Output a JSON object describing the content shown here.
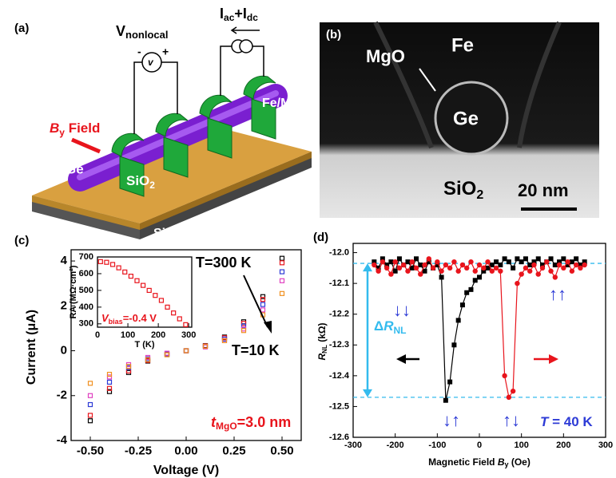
{
  "panels": {
    "a": {
      "label": "(a)",
      "v_nonlocal": [
        "V",
        "nonlocal"
      ],
      "meter": [
        "-",
        "v",
        "+"
      ],
      "current": [
        "I",
        "ac",
        "+I",
        "dc"
      ],
      "field": [
        "B",
        "y",
        " Field"
      ],
      "ge": "Ge",
      "fe_mgo": "Fe/MgO",
      "sio2": [
        "SiO",
        "2"
      ],
      "si": "Si"
    },
    "b": {
      "label": "(b)",
      "fe": "Fe",
      "mgo": "MgO",
      "ge": "Ge",
      "sio2": [
        "SiO",
        "2"
      ],
      "scale_bar": "20 nm"
    }
  },
  "chart_data": [
    {
      "type": "scatter",
      "label": "(c)",
      "x_label": "Voltage (V)",
      "y_label": "Current (μA)",
      "x": [
        -0.5,
        -0.4,
        -0.3,
        -0.2,
        -0.1,
        0,
        0.1,
        0.2,
        0.3,
        0.4,
        0.5
      ],
      "series": [
        {
          "color": "#000000",
          "values": [
            -3.12,
            -1.82,
            -0.97,
            -0.46,
            -0.17,
            0,
            0.23,
            0.61,
            1.29,
            2.41,
            4.12
          ]
        },
        {
          "color": "#e8141c",
          "values": [
            -2.88,
            -1.68,
            -0.9,
            -0.43,
            -0.16,
            0,
            0.22,
            0.58,
            1.22,
            2.29,
            3.92
          ]
        },
        {
          "color": "#2d3bd6",
          "values": [
            -2.4,
            -1.4,
            -0.75,
            -0.36,
            -0.13,
            0,
            0.2,
            0.52,
            1.1,
            2.06,
            3.52
          ]
        },
        {
          "color": "#e040c0",
          "values": [
            -2.0,
            -1.17,
            -0.62,
            -0.3,
            -0.11,
            0,
            0.17,
            0.46,
            0.97,
            1.82,
            3.12
          ]
        },
        {
          "color": "#f09020",
          "values": [
            -1.45,
            -1.05,
            -0.7,
            -0.4,
            -0.18,
            0,
            0.2,
            0.45,
            0.9,
            1.6,
            2.55
          ]
        }
      ],
      "xlim": [
        -0.6,
        0.6
      ],
      "ylim": [
        -4,
        4.5
      ],
      "xticks": [
        {
          "value": -0.5,
          "label": "-0.50"
        },
        {
          "value": -0.25,
          "label": "-0.25"
        },
        {
          "value": 0,
          "label": "0.00"
        },
        {
          "value": 0.25,
          "label": "0.25"
        },
        {
          "value": 0.5,
          "label": "0.50"
        }
      ],
      "yticks": [
        -4,
        -2,
        0,
        2,
        4
      ],
      "annotations": {
        "t_high": "T=300 K",
        "t_low": "T=10 K",
        "thickness": [
          "t",
          "MgO",
          "=3.0 nm"
        ]
      }
    },
    {
      "type": "scatter",
      "x_label": "T (K)",
      "y_label": "RA (MΩ·cm²)",
      "x": [
        10,
        30,
        50,
        70,
        90,
        110,
        130,
        150,
        170,
        190,
        210,
        230,
        250,
        270,
        290
      ],
      "values": [
        672,
        668,
        655,
        635,
        610,
        585,
        558,
        530,
        500,
        470,
        440,
        400,
        365,
        330,
        295
      ],
      "color": "#e8141c",
      "xlim": [
        0,
        310
      ],
      "ylim": [
        280,
        700
      ],
      "xticks": [
        0,
        100,
        200,
        300
      ],
      "yticks": [
        300,
        400,
        500,
        600,
        700
      ],
      "annotation": [
        "V",
        "bias",
        "=-0.4 V"
      ]
    },
    {
      "type": "line",
      "label": "(d)",
      "x_label": [
        "Magnetic Field ",
        "B",
        "y",
        " (Oe)"
      ],
      "y_label": [
        "R",
        "NL",
        " (kΩ)"
      ],
      "x": [
        -250,
        -240,
        -230,
        -220,
        -210,
        -200,
        -190,
        -180,
        -170,
        -160,
        -150,
        -140,
        -130,
        -120,
        -110,
        -100,
        -90,
        -80,
        -70,
        -60,
        -50,
        -40,
        -30,
        -20,
        -10,
        0,
        10,
        20,
        30,
        40,
        50,
        60,
        70,
        80,
        90,
        100,
        110,
        120,
        130,
        140,
        150,
        160,
        170,
        180,
        190,
        200,
        210,
        220,
        230,
        240,
        250
      ],
      "series": [
        {
          "color": "#000000",
          "values": [
            -12.03,
            -12.05,
            -12.02,
            -12.04,
            -12.03,
            -12.06,
            -12.02,
            -12.04,
            -12.03,
            -12.05,
            -12.02,
            -12.04,
            -12.06,
            -12.03,
            -12.05,
            -12.04,
            -12.08,
            -12.48,
            -12.42,
            -12.3,
            -12.22,
            -12.17,
            -12.13,
            -12.12,
            -12.09,
            -12.08,
            -12.06,
            -12.05,
            -12.04,
            -12.03,
            -12.04,
            -12.02,
            -12.03,
            -12.05,
            -12.02,
            -12.03,
            -12.02,
            -12.04,
            -12.03,
            -12.02,
            -12.04,
            -12.03,
            -12.02,
            -12.04,
            -12.03,
            -12.02,
            -12.04,
            -12.03,
            -12.02,
            -12.04,
            -12.03
          ]
        },
        {
          "color": "#e8141c",
          "values": [
            -12.04,
            -12.06,
            -12.03,
            -12.05,
            -12.07,
            -12.03,
            -12.05,
            -12.04,
            -12.06,
            -12.03,
            -12.05,
            -12.07,
            -12.04,
            -12.02,
            -12.05,
            -12.03,
            -12.06,
            -12.04,
            -12.05,
            -12.03,
            -12.06,
            -12.04,
            -12.05,
            -12.03,
            -12.06,
            -12.04,
            -12.05,
            -12.03,
            -12.06,
            -12.05,
            -12.06,
            -12.4,
            -12.47,
            -12.45,
            -12.1,
            -12.07,
            -12.05,
            -12.06,
            -12.04,
            -12.07,
            -12.05,
            -12.03,
            -12.06,
            -12.08,
            -12.04,
            -12.05,
            -12.03,
            -12.06,
            -12.04,
            -12.05,
            -12.04
          ]
        }
      ],
      "xlim": [
        -300,
        300
      ],
      "ylim": [
        -12.6,
        -11.97
      ],
      "xticks": [
        -300,
        -200,
        -100,
        0,
        100,
        200,
        300
      ],
      "yticks": [
        {
          "value": -12.0,
          "label": "-12.0"
        },
        -12.1,
        -12.2,
        -12.3,
        -12.4,
        -12.5,
        -12.6
      ],
      "reference_lines": [
        -12.035,
        -12.47
      ],
      "reference_color": "#33bbee",
      "annotations": {
        "delta": [
          "Δ",
          "R",
          "NL"
        ],
        "temperature": [
          "T",
          " = 40 K"
        ],
        "arrows": [
          "↓↓",
          "↑↑",
          "↓↑",
          "↑↓"
        ]
      }
    }
  ]
}
